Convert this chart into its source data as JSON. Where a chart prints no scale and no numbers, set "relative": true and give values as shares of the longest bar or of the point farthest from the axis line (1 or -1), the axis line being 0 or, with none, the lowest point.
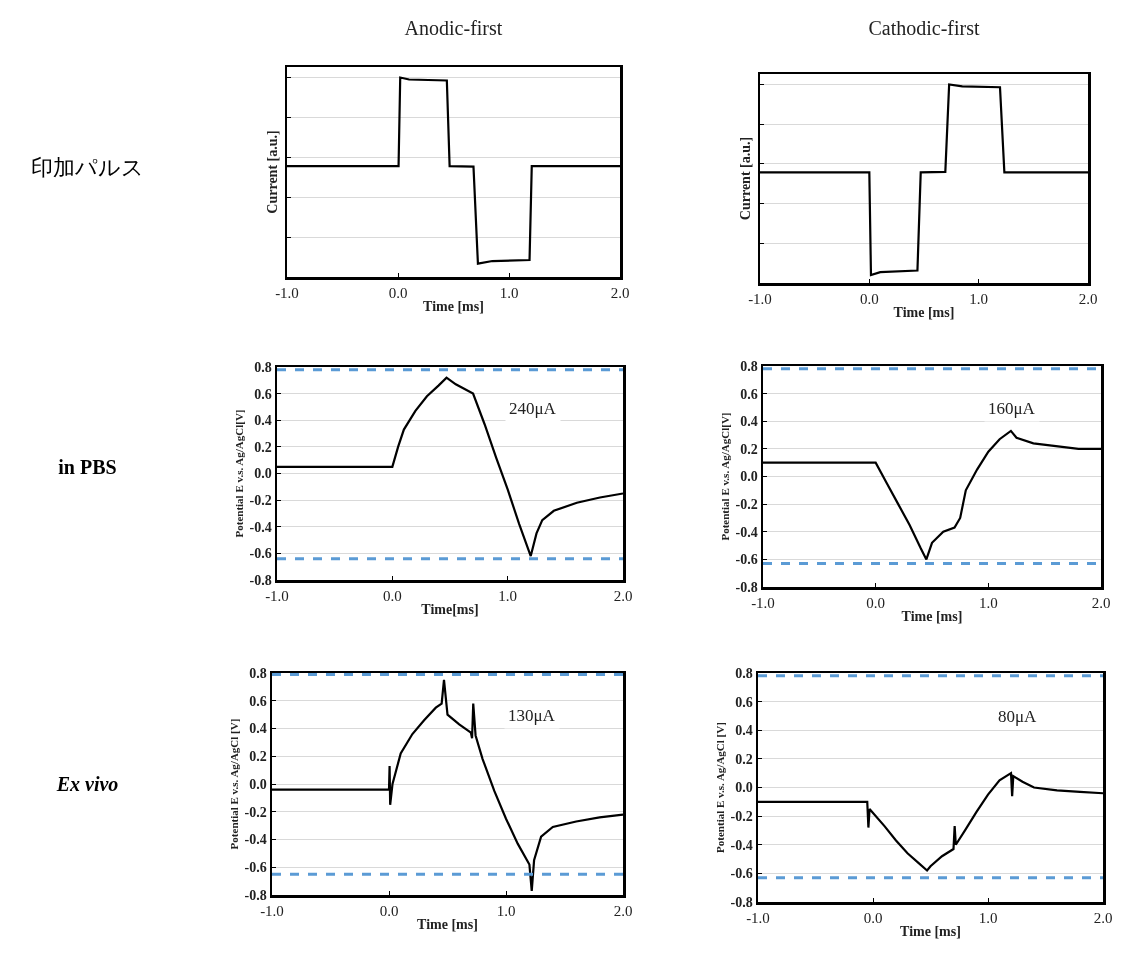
{
  "chart_data": [
    {
      "type": "line",
      "title": "Anodic-first",
      "xlabel": "Time [ms]",
      "ylabel": "Current [a.u.]",
      "relative": true,
      "tick_labels": "x",
      "grid": "y",
      "xlim": [
        -1,
        2
      ],
      "xticks": [
        {
          "value": -1,
          "label": "-1.0"
        },
        {
          "value": 0,
          "label": "0.0"
        },
        {
          "value": 1,
          "label": "1.0"
        },
        {
          "value": 2,
          "label": "2.0"
        }
      ],
      "series": [
        {
          "color": "#000000",
          "x": [
            -1,
            0.005,
            0.02,
            0.1,
            0.44,
            0.465,
            0.68,
            0.72,
            0.85,
            1.185,
            1.205,
            2
          ],
          "values": [
            0.556,
            0.556,
            1,
            0.99,
            0.985,
            0.556,
            0.553,
            0.067,
            0.08,
            0.085,
            0.556,
            0.556
          ]
        }
      ]
    },
    {
      "type": "line",
      "title": "Cathodic-first",
      "xlabel": "Time [ms]",
      "ylabel": "Current [a.u.]",
      "relative": true,
      "tick_labels": "x",
      "grid": "y",
      "xlim": [
        -1,
        2
      ],
      "xticks": [
        {
          "value": -1,
          "label": "-1.0"
        },
        {
          "value": 0,
          "label": "0.0"
        },
        {
          "value": 1,
          "label": "1.0"
        },
        {
          "value": 2,
          "label": "2.0"
        }
      ],
      "series": [
        {
          "color": "#000000",
          "x": [
            -1,
            0,
            0.015,
            0.1,
            0.44,
            0.47,
            0.695,
            0.73,
            0.85,
            1.195,
            1.235,
            2
          ],
          "values": [
            0.557,
            0.557,
            0.04,
            0.055,
            0.063,
            0.557,
            0.56,
            1,
            0.99,
            0.986,
            0.557,
            0.557
          ]
        }
      ]
    },
    {
      "type": "line",
      "xlabel": "Time[ms]",
      "ylabel": "Potential E v.s. Ag/AgCl[V]",
      "annotations": [
        "240μA"
      ],
      "grid": "y",
      "xlim": [
        -1,
        2
      ],
      "ylim": [
        -0.8,
        0.8
      ],
      "xticks": [
        {
          "value": -1,
          "label": "-1.0"
        },
        {
          "value": 0,
          "label": "0.0"
        },
        {
          "value": 1,
          "label": "1.0"
        },
        {
          "value": 2,
          "label": "2.0"
        }
      ],
      "yticks": [
        {
          "value": -0.8,
          "label": "-0.8"
        },
        {
          "value": -0.6,
          "label": "-0.6"
        },
        {
          "value": -0.4,
          "label": "-0.4"
        },
        {
          "value": -0.2,
          "label": "-0.2"
        },
        {
          "value": 0,
          "label": "0.0"
        },
        {
          "value": 0.2,
          "label": "0.2"
        },
        {
          "value": 0.4,
          "label": "0.4"
        },
        {
          "value": 0.6,
          "label": "0.6"
        },
        {
          "value": 0.8,
          "label": "0.8"
        }
      ],
      "ref_lines": [
        {
          "axis": "y",
          "value": 0.78,
          "color": "#5b9bd5",
          "line_style": "dashed"
        },
        {
          "axis": "y",
          "value": -0.64,
          "color": "#5b9bd5",
          "line_style": "dashed"
        }
      ],
      "series": [
        {
          "color": "#000000",
          "x": [
            -1,
            0,
            0.05,
            0.1,
            0.2,
            0.3,
            0.4,
            0.47,
            0.55,
            0.7,
            0.8,
            0.9,
            1,
            1.1,
            1.2,
            1.25,
            1.3,
            1.4,
            1.6,
            1.8,
            2
          ],
          "values": [
            0.05,
            0.05,
            0.2,
            0.33,
            0.47,
            0.58,
            0.66,
            0.72,
            0.67,
            0.6,
            0.37,
            0.12,
            -0.12,
            -0.38,
            -0.62,
            -0.45,
            -0.35,
            -0.28,
            -0.22,
            -0.18,
            -0.15
          ]
        }
      ]
    },
    {
      "type": "line",
      "xlabel": "Time [ms]",
      "ylabel": "Potential E v.s. Ag/AgCl[V]",
      "annotations": [
        "160μA"
      ],
      "grid": "y",
      "xlim": [
        -1,
        2
      ],
      "ylim": [
        -0.8,
        0.8
      ],
      "xticks": [
        {
          "value": -1,
          "label": "-1.0"
        },
        {
          "value": 0,
          "label": "0.0"
        },
        {
          "value": 1,
          "label": "1.0"
        },
        {
          "value": 2,
          "label": "2.0"
        }
      ],
      "yticks": [
        {
          "value": -0.8,
          "label": "-0.8"
        },
        {
          "value": -0.6,
          "label": "-0.6"
        },
        {
          "value": -0.4,
          "label": "-0.4"
        },
        {
          "value": -0.2,
          "label": "-0.2"
        },
        {
          "value": 0,
          "label": "0.0"
        },
        {
          "value": 0.2,
          "label": "0.2"
        },
        {
          "value": 0.4,
          "label": "0.4"
        },
        {
          "value": 0.6,
          "label": "0.6"
        },
        {
          "value": 0.8,
          "label": "0.8"
        }
      ],
      "ref_lines": [
        {
          "axis": "y",
          "value": 0.78,
          "color": "#5b9bd5",
          "line_style": "dashed"
        },
        {
          "axis": "y",
          "value": -0.63,
          "color": "#5b9bd5",
          "line_style": "dashed"
        }
      ],
      "series": [
        {
          "color": "#000000",
          "x": [
            -1,
            0,
            0.1,
            0.2,
            0.3,
            0.4,
            0.45,
            0.5,
            0.6,
            0.7,
            0.75,
            0.8,
            0.9,
            1,
            1.1,
            1.2,
            1.25,
            1.4,
            1.6,
            1.8,
            2
          ],
          "values": [
            0.1,
            0.1,
            -0.05,
            -0.2,
            -0.35,
            -0.52,
            -0.6,
            -0.48,
            -0.4,
            -0.37,
            -0.3,
            -0.1,
            0.05,
            0.18,
            0.27,
            0.33,
            0.28,
            0.24,
            0.22,
            0.2,
            0.2
          ]
        }
      ]
    },
    {
      "type": "line",
      "xlabel": "Time [ms]",
      "ylabel": "Potential E v.s. Ag/AgCl [V]",
      "annotations": [
        "130μA"
      ],
      "grid": "y",
      "xlim": [
        -1,
        2
      ],
      "ylim": [
        -0.8,
        0.8
      ],
      "xticks": [
        {
          "value": -1,
          "label": "-1.0"
        },
        {
          "value": 0,
          "label": "0.0"
        },
        {
          "value": 1,
          "label": "1.0"
        },
        {
          "value": 2,
          "label": "2.0"
        }
      ],
      "yticks": [
        {
          "value": -0.8,
          "label": "-0.8"
        },
        {
          "value": -0.6,
          "label": "-0.6"
        },
        {
          "value": -0.4,
          "label": "-0.4"
        },
        {
          "value": -0.2,
          "label": "-0.2"
        },
        {
          "value": 0,
          "label": "0.0"
        },
        {
          "value": 0.2,
          "label": "0.2"
        },
        {
          "value": 0.4,
          "label": "0.4"
        },
        {
          "value": 0.6,
          "label": "0.6"
        },
        {
          "value": 0.8,
          "label": "0.8"
        }
      ],
      "ref_lines": [
        {
          "axis": "y",
          "value": 0.79,
          "color": "#5b9bd5",
          "line_style": "dashed"
        },
        {
          "axis": "y",
          "value": -0.65,
          "color": "#5b9bd5",
          "line_style": "dashed"
        }
      ],
      "series": [
        {
          "color": "#000000",
          "x": [
            -1,
            0,
            0.005,
            0.01,
            0.03,
            0.1,
            0.2,
            0.3,
            0.4,
            0.45,
            0.47,
            0.5,
            0.6,
            0.7,
            0.71,
            0.72,
            0.74,
            0.8,
            0.9,
            1,
            1.1,
            1.2,
            1.22,
            1.24,
            1.3,
            1.4,
            1.6,
            1.8,
            2
          ],
          "values": [
            -0.04,
            -0.04,
            0.13,
            -0.15,
            0,
            0.22,
            0.36,
            0.46,
            0.55,
            0.58,
            0.75,
            0.5,
            0.43,
            0.37,
            0.33,
            0.58,
            0.35,
            0.18,
            -0.05,
            -0.25,
            -0.43,
            -0.58,
            -0.77,
            -0.55,
            -0.38,
            -0.31,
            -0.27,
            -0.24,
            -0.22
          ]
        }
      ]
    },
    {
      "type": "line",
      "xlabel": "Time [ms]",
      "ylabel": "Potential E v.s. Ag/AgCl [V]",
      "annotations": [
        "80μA"
      ],
      "grid": "y",
      "xlim": [
        -1,
        2
      ],
      "ylim": [
        -0.8,
        0.8
      ],
      "xticks": [
        {
          "value": -1,
          "label": "-1.0"
        },
        {
          "value": 0,
          "label": "0.0"
        },
        {
          "value": 1,
          "label": "1.0"
        },
        {
          "value": 2,
          "label": "2.0"
        }
      ],
      "yticks": [
        {
          "value": -0.8,
          "label": "-0.8"
        },
        {
          "value": -0.6,
          "label": "-0.6"
        },
        {
          "value": -0.4,
          "label": "-0.4"
        },
        {
          "value": -0.2,
          "label": "-0.2"
        },
        {
          "value": 0,
          "label": "0.0"
        },
        {
          "value": 0.2,
          "label": "0.2"
        },
        {
          "value": 0.4,
          "label": "0.4"
        },
        {
          "value": 0.6,
          "label": "0.6"
        },
        {
          "value": 0.8,
          "label": "0.8"
        }
      ],
      "ref_lines": [
        {
          "axis": "y",
          "value": 0.78,
          "color": "#5b9bd5",
          "line_style": "dashed"
        },
        {
          "axis": "y",
          "value": -0.63,
          "color": "#5b9bd5",
          "line_style": "dashed"
        }
      ],
      "series": [
        {
          "color": "#000000",
          "x": [
            -1,
            -0.05,
            -0.04,
            -0.03,
            0.1,
            0.2,
            0.3,
            0.4,
            0.47,
            0.5,
            0.6,
            0.7,
            0.71,
            0.72,
            0.8,
            0.9,
            1,
            1.1,
            1.2,
            1.21,
            1.22,
            1.3,
            1.4,
            1.6,
            1.8,
            2
          ],
          "values": [
            -0.1,
            -0.1,
            -0.28,
            -0.15,
            -0.27,
            -0.37,
            -0.46,
            -0.53,
            -0.58,
            -0.55,
            -0.48,
            -0.43,
            -0.27,
            -0.4,
            -0.3,
            -0.17,
            -0.05,
            0.05,
            0.1,
            -0.06,
            0.08,
            0.04,
            0,
            -0.02,
            -0.03,
            -0.04
          ]
        }
      ]
    },
    {
      "type": "other",
      "annotations": [
        "印加パルス",
        "in PBS",
        "Ex vivo"
      ]
    }
  ]
}
